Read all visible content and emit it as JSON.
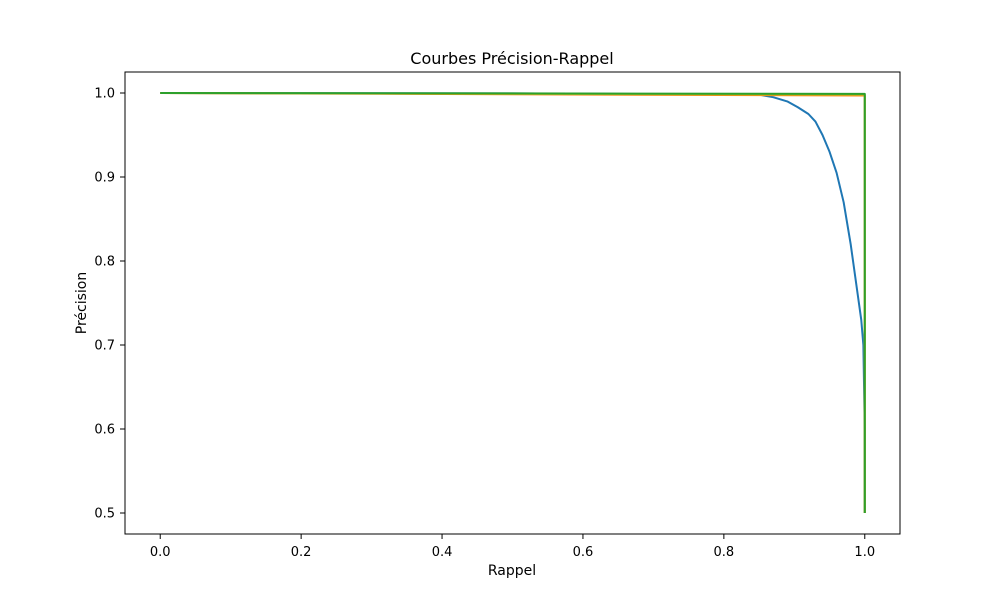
{
  "chart_data": {
    "type": "line",
    "title": "Courbes Précision-Rappel",
    "xlabel": "Rappel",
    "ylabel": "Précision",
    "xlim": [
      -0.05,
      1.05
    ],
    "ylim": [
      0.475,
      1.025
    ],
    "xticks": [
      0.0,
      0.2,
      0.4,
      0.6,
      0.8,
      1.0
    ],
    "xtick_labels": [
      "0.0",
      "0.2",
      "0.4",
      "0.6",
      "0.8",
      "1.0"
    ],
    "yticks": [
      0.5,
      0.6,
      0.7,
      0.8,
      0.9,
      1.0
    ],
    "ytick_labels": [
      "0.5",
      "0.6",
      "0.7",
      "0.8",
      "0.9",
      "1.0"
    ],
    "grid": false,
    "series": [
      {
        "color": "#1f77b4",
        "x": [
          0.0,
          0.5,
          0.85,
          0.87,
          0.89,
          0.905,
          0.92,
          0.93,
          0.94,
          0.95,
          0.96,
          0.97,
          0.98,
          0.99,
          0.995,
          0.998,
          1.0,
          1.0
        ],
        "y": [
          1.0,
          0.9995,
          0.998,
          0.995,
          0.99,
          0.983,
          0.975,
          0.966,
          0.95,
          0.93,
          0.905,
          0.87,
          0.82,
          0.76,
          0.73,
          0.7,
          0.6,
          0.5
        ]
      },
      {
        "color": "#ff7f0e",
        "x": [
          0.0,
          1.0,
          1.0
        ],
        "y": [
          1.0,
          0.997,
          0.5
        ]
      },
      {
        "color": "#bcbd22",
        "x": [
          0.0,
          1.0,
          1.0
        ],
        "y": [
          1.0,
          0.998,
          0.5
        ]
      },
      {
        "color": "#2ca02c",
        "x": [
          0.0,
          1.0,
          1.0
        ],
        "y": [
          1.0,
          0.999,
          0.5
        ]
      }
    ]
  }
}
